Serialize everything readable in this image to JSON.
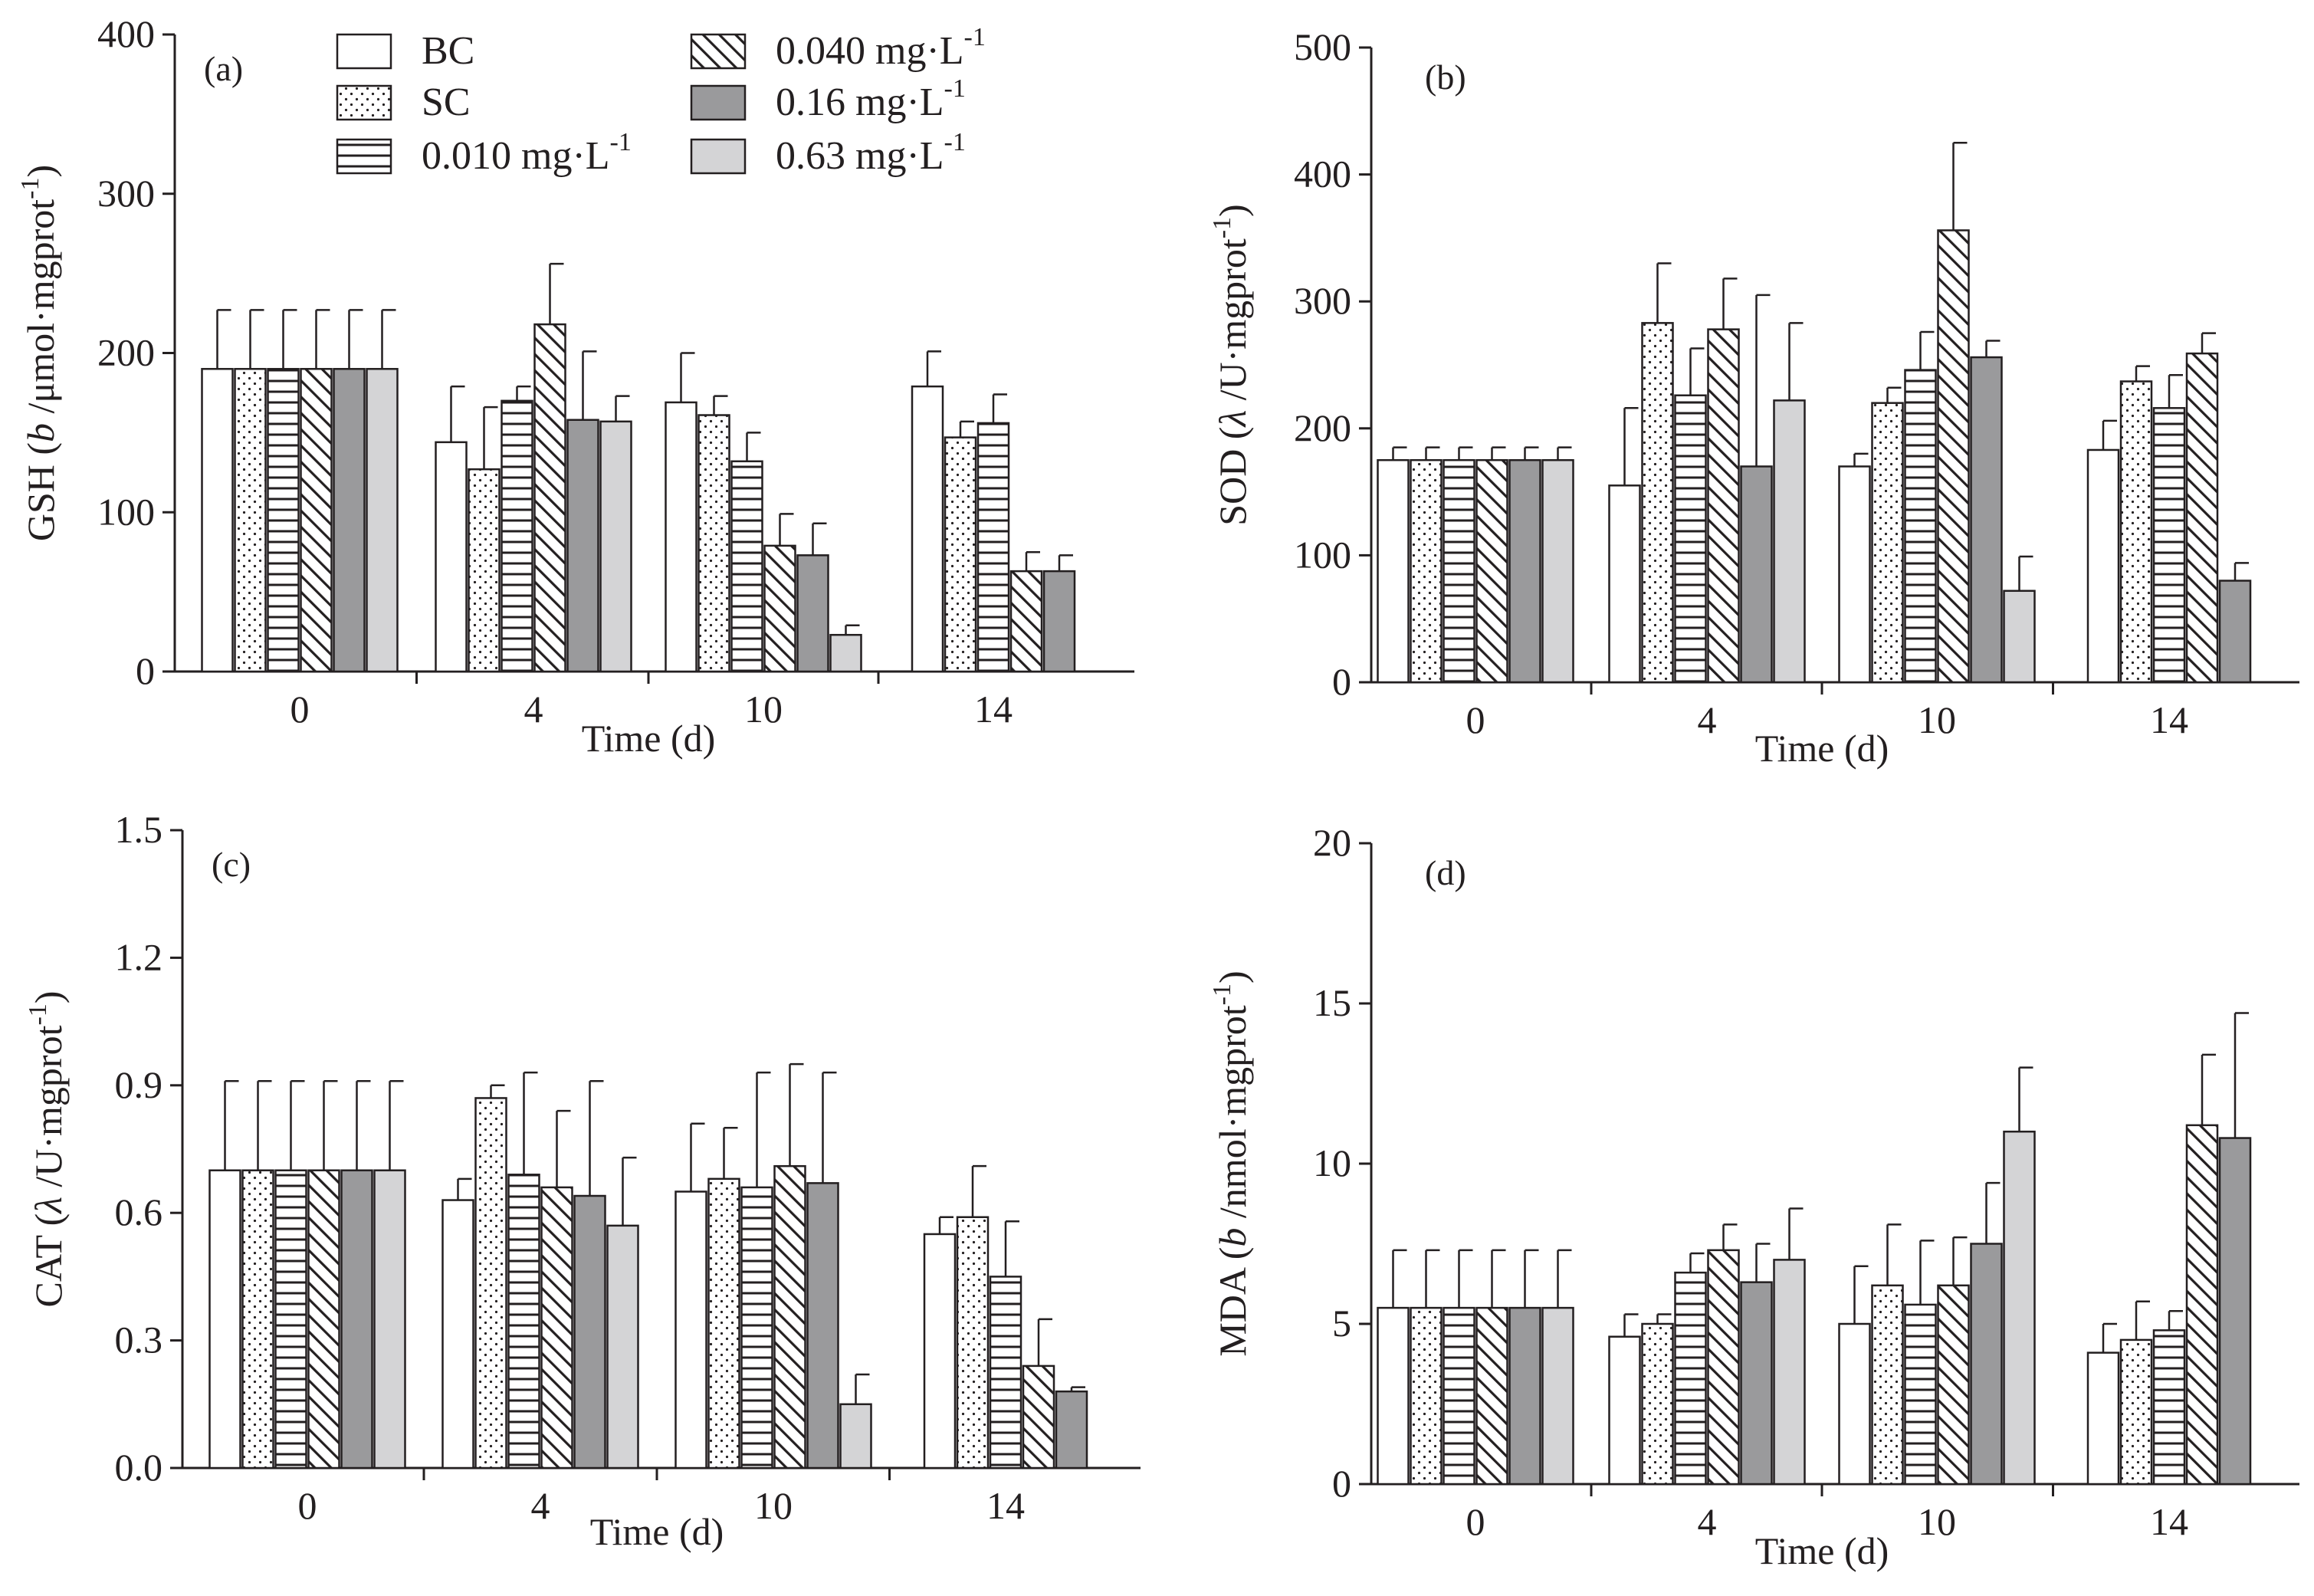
{
  "colors": {
    "ink": "#231f20",
    "white_fill": "#ffffff",
    "dark_gray": "#9a9a9c",
    "light_gray": "#d4d4d6"
  },
  "legend": {
    "entries": [
      {
        "key": "BC",
        "pattern": "white",
        "text": "BC",
        "unit_base": "",
        "superscript": ""
      },
      {
        "key": "SC",
        "pattern": "dots",
        "text": "SC",
        "unit_base": "",
        "superscript": ""
      },
      {
        "key": "c0010",
        "pattern": "hlines",
        "text": "0.010 mg·L",
        "unit_base": "",
        "superscript": "-1"
      },
      {
        "key": "c0040",
        "pattern": "diag",
        "text": "0.040 mg·L",
        "unit_base": "",
        "superscript": "-1"
      },
      {
        "key": "c016",
        "pattern": "darkgray",
        "text": "0.16 mg·L",
        "unit_base": "",
        "superscript": "-1"
      },
      {
        "key": "c063",
        "pattern": "lightgray",
        "text": "0.63 mg·L",
        "unit_base": "",
        "superscript": "-1"
      }
    ]
  },
  "chart_data": [
    {
      "type": "bar",
      "panel_label": "(a)",
      "ylabel": {
        "pre": "GSH (",
        "var": "b",
        "mid": " /μmol·mgprot",
        "sup": "-1",
        "post": ")"
      },
      "xlabel": "Time (d)",
      "categories": [
        "0",
        "4",
        "10",
        "14"
      ],
      "ylim": [
        0,
        400
      ],
      "yticks": [
        "0",
        "100",
        "200",
        "300",
        "400"
      ],
      "ytick_values": [
        0,
        100,
        200,
        300,
        400
      ],
      "series": [
        {
          "name": "BC",
          "values": [
            190,
            144,
            169,
            179
          ],
          "errors": [
            37,
            35,
            31,
            22
          ]
        },
        {
          "name": "SC",
          "values": [
            190,
            127,
            161,
            147
          ],
          "errors": [
            37,
            39,
            12,
            10
          ]
        },
        {
          "name": "0.010 mg·L-1",
          "values": [
            190,
            170,
            132,
            156
          ],
          "errors": [
            37,
            9,
            18,
            18
          ]
        },
        {
          "name": "0.040 mg·L-1",
          "values": [
            190,
            218,
            79,
            63
          ],
          "errors": [
            37,
            38,
            20,
            12
          ]
        },
        {
          "name": "0.16 mg·L-1",
          "values": [
            190,
            158,
            73,
            63
          ],
          "errors": [
            37,
            43,
            20,
            10
          ]
        },
        {
          "name": "0.63 mg·L-1",
          "values": [
            190,
            157,
            23,
            null
          ],
          "errors": [
            37,
            16,
            6,
            null
          ]
        }
      ]
    },
    {
      "type": "bar",
      "panel_label": "(b)",
      "ylabel": {
        "pre": "SOD (",
        "var": "λ",
        "mid": " /U·mgprot",
        "sup": "-1",
        "post": ")"
      },
      "xlabel": "Time (d)",
      "categories": [
        "0",
        "4",
        "10",
        "14"
      ],
      "ylim": [
        0,
        500
      ],
      "yticks": [
        "0",
        "100",
        "200",
        "300",
        "400",
        "500"
      ],
      "ytick_values": [
        0,
        100,
        200,
        300,
        400,
        500
      ],
      "series": [
        {
          "name": "BC",
          "values": [
            175,
            155,
            170,
            183
          ],
          "errors": [
            10,
            61,
            10,
            23
          ]
        },
        {
          "name": "SC",
          "values": [
            175,
            283,
            220,
            237
          ],
          "errors": [
            10,
            47,
            12,
            12
          ]
        },
        {
          "name": "0.010 mg·L-1",
          "values": [
            175,
            226,
            246,
            216
          ],
          "errors": [
            10,
            37,
            30,
            26
          ]
        },
        {
          "name": "0.040 mg·L-1",
          "values": [
            175,
            278,
            356,
            259
          ],
          "errors": [
            10,
            40,
            69,
            16
          ]
        },
        {
          "name": "0.16 mg·L-1",
          "values": [
            175,
            170,
            256,
            80
          ],
          "errors": [
            10,
            135,
            13,
            14
          ]
        },
        {
          "name": "0.63 mg·L-1",
          "values": [
            175,
            222,
            72,
            null
          ],
          "errors": [
            10,
            61,
            27,
            null
          ]
        }
      ]
    },
    {
      "type": "bar",
      "panel_label": "(c)",
      "ylabel": {
        "pre": "CAT (",
        "var": "λ",
        "mid": " /U·mgprot",
        "sup": "-1",
        "post": ")"
      },
      "xlabel": "Time (d)",
      "categories": [
        "0",
        "4",
        "10",
        "14"
      ],
      "ylim": [
        0,
        1.5
      ],
      "yticks": [
        "0.0",
        "0.3",
        "0.6",
        "0.9",
        "1.2",
        "1.5"
      ],
      "ytick_values": [
        0,
        0.3,
        0.6,
        0.9,
        1.2,
        1.5
      ],
      "series": [
        {
          "name": "BC",
          "values": [
            0.7,
            0.63,
            0.65,
            0.55
          ],
          "errors": [
            0.21,
            0.05,
            0.16,
            0.04
          ]
        },
        {
          "name": "SC",
          "values": [
            0.7,
            0.87,
            0.68,
            0.59
          ],
          "errors": [
            0.21,
            0.03,
            0.12,
            0.12
          ]
        },
        {
          "name": "0.010 mg·L-1",
          "values": [
            0.7,
            0.69,
            0.66,
            0.45
          ],
          "errors": [
            0.21,
            0.24,
            0.27,
            0.13
          ]
        },
        {
          "name": "0.040 mg·L-1",
          "values": [
            0.7,
            0.66,
            0.71,
            0.24
          ],
          "errors": [
            0.21,
            0.18,
            0.24,
            0.11
          ]
        },
        {
          "name": "0.16 mg·L-1",
          "values": [
            0.7,
            0.64,
            0.67,
            0.18
          ],
          "errors": [
            0.21,
            0.27,
            0.26,
            0.01
          ]
        },
        {
          "name": "0.63 mg·L-1",
          "values": [
            0.7,
            0.57,
            0.15,
            null
          ],
          "errors": [
            0.21,
            0.16,
            0.07,
            null
          ]
        }
      ]
    },
    {
      "type": "bar",
      "panel_label": "(d)",
      "ylabel": {
        "pre": "MDA (",
        "var": "b",
        "mid": " /nmol·mgprot",
        "sup": "-1",
        "post": ")"
      },
      "xlabel": "Time (d)",
      "categories": [
        "0",
        "4",
        "10",
        "14"
      ],
      "ylim": [
        0,
        20
      ],
      "yticks": [
        "0",
        "5",
        "10",
        "15",
        "20"
      ],
      "ytick_values": [
        0,
        5,
        10,
        15,
        20
      ],
      "series": [
        {
          "name": "BC",
          "values": [
            5.5,
            4.6,
            5.0,
            4.1
          ],
          "errors": [
            1.8,
            0.7,
            1.8,
            0.9
          ]
        },
        {
          "name": "SC",
          "values": [
            5.5,
            5.0,
            6.2,
            4.5
          ],
          "errors": [
            1.8,
            0.3,
            1.9,
            1.2
          ]
        },
        {
          "name": "0.010 mg·L-1",
          "values": [
            5.5,
            6.6,
            5.6,
            4.8
          ],
          "errors": [
            1.8,
            0.6,
            2.0,
            0.6
          ]
        },
        {
          "name": "0.040 mg·L-1",
          "values": [
            5.5,
            7.3,
            6.2,
            11.2
          ],
          "errors": [
            1.8,
            0.8,
            1.5,
            2.2
          ]
        },
        {
          "name": "0.16 mg·L-1",
          "values": [
            5.5,
            6.3,
            7.5,
            10.8
          ],
          "errors": [
            1.8,
            1.2,
            1.9,
            3.9
          ]
        },
        {
          "name": "0.63 mg·L-1",
          "values": [
            5.5,
            7.0,
            11.0,
            null
          ],
          "errors": [
            1.8,
            1.6,
            2.0,
            null
          ]
        }
      ]
    }
  ]
}
